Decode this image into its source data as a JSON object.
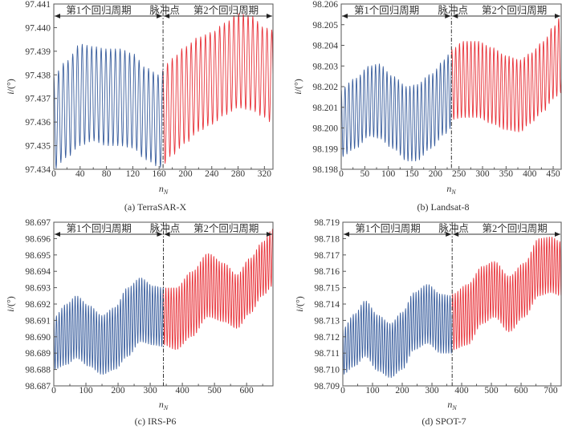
{
  "figure": {
    "ylabel_main": "i",
    "ylabel_unit": "/(°)",
    "xlabel_main": "n",
    "xlabel_sub": "N",
    "annotation_period1": "第1个回归周期",
    "annotation_pulse": "脉冲点",
    "annotation_period2": "第2个回归周期",
    "color_before_pulse": "#3b5f9e",
    "color_after_pulse": "#e8333a"
  },
  "chart_data": [
    {
      "type": "line",
      "id": "a",
      "caption": "(a) TerraSAR-X",
      "xlabel": "n_N",
      "ylabel": "i/(°)",
      "xlim": [
        0,
        333
      ],
      "ylim": [
        97.434,
        97.441
      ],
      "xticks": [
        0,
        40,
        80,
        120,
        160,
        200,
        240,
        280,
        320
      ],
      "xtick_labels": [
        "0",
        "40",
        "80",
        "120",
        "160",
        "200",
        "240",
        "280",
        "320"
      ],
      "yticks": [
        97.434,
        97.435,
        97.436,
        97.437,
        97.438,
        97.439,
        97.44,
        97.441
      ],
      "ytick_labels": [
        "97.434",
        "97.435",
        "97.436",
        "97.437",
        "97.438",
        "97.439",
        "97.440",
        "97.441"
      ],
      "pulse_x": 166,
      "oscillation_period": 7.2,
      "series": [
        {
          "name": "第1个回归周期",
          "color": "#3b5f9e",
          "x": [
            0,
            20,
            40,
            60,
            80,
            100,
            120,
            140,
            160,
            166
          ],
          "upper": [
            97.438,
            97.4386,
            97.4393,
            97.4392,
            97.4391,
            97.4391,
            97.4389,
            97.4383,
            97.438,
            97.4382
          ],
          "lower": [
            97.434,
            97.4345,
            97.435,
            97.4352,
            97.435,
            97.435,
            97.4349,
            97.4344,
            97.4341,
            97.434
          ]
        },
        {
          "name": "第2个回归周期",
          "color": "#e8333a",
          "x": [
            166,
            180,
            200,
            220,
            240,
            260,
            280,
            300,
            320,
            333
          ],
          "upper": [
            97.4383,
            97.4387,
            97.4392,
            97.4396,
            97.4398,
            97.4402,
            97.4406,
            97.4405,
            97.44,
            97.4399
          ],
          "lower": [
            97.4342,
            97.4346,
            97.4351,
            97.4356,
            97.4359,
            97.4363,
            97.4366,
            97.4365,
            97.4362,
            97.4359
          ]
        }
      ]
    },
    {
      "type": "line",
      "id": "b",
      "caption": "(b) Landsat-8",
      "xlabel": "n_N",
      "ylabel": "i/(°)",
      "xlim": [
        0,
        467
      ],
      "ylim": [
        98.198,
        98.206
      ],
      "xticks": [
        0,
        50,
        100,
        150,
        200,
        250,
        300,
        350,
        400,
        450
      ],
      "xtick_labels": [
        "0",
        "50",
        "100",
        "150",
        "200",
        "250",
        "300",
        "350",
        "400",
        "450"
      ],
      "yticks": [
        98.198,
        98.199,
        98.2,
        98.201,
        98.202,
        98.203,
        98.204,
        98.205,
        98.206
      ],
      "ytick_labels": [
        "98.198",
        "98.199",
        "98.200",
        "98.201",
        "98.202",
        "98.203",
        "98.204",
        "98.205",
        "98.206"
      ],
      "pulse_x": 234,
      "oscillation_period": 8.1,
      "series": [
        {
          "name": "第1个回归周期",
          "color": "#3b5f9e",
          "x": [
            0,
            30,
            60,
            80,
            110,
            140,
            160,
            190,
            220,
            234
          ],
          "upper": [
            98.2019,
            98.2024,
            98.203,
            98.2031,
            98.2025,
            98.202,
            98.2021,
            98.2026,
            98.2033,
            98.2038
          ],
          "lower": [
            98.1986,
            98.199,
            98.1996,
            98.1995,
            98.199,
            98.1984,
            98.1984,
            98.199,
            98.1997,
            98.2
          ]
        },
        {
          "name": "第2个回归周期",
          "color": "#e8333a",
          "x": [
            234,
            260,
            290,
            320,
            350,
            380,
            400,
            430,
            450,
            467
          ],
          "upper": [
            98.2038,
            98.2042,
            98.2042,
            98.2039,
            98.2035,
            98.2033,
            98.2036,
            98.2042,
            98.2049,
            98.2054
          ],
          "lower": [
            98.2004,
            98.2005,
            98.2005,
            98.2002,
            98.1999,
            98.1998,
            98.2002,
            98.2008,
            98.2014,
            98.2017
          ]
        }
      ]
    },
    {
      "type": "line",
      "id": "c",
      "caption": "(c) IRS-P6",
      "xlabel": "n_N",
      "ylabel": "i/(°)",
      "xlim": [
        0,
        682
      ],
      "ylim": [
        98.687,
        98.697
      ],
      "xticks": [
        0,
        100,
        200,
        300,
        400,
        500,
        600
      ],
      "xtick_labels": [
        "0",
        "100",
        "200",
        "300",
        "400",
        "500",
        "600"
      ],
      "yticks": [
        98.687,
        98.688,
        98.689,
        98.69,
        98.691,
        98.692,
        98.693,
        98.694,
        98.695,
        98.696,
        98.697
      ],
      "ytick_labels": [
        "98.687",
        "98.688",
        "98.689",
        "98.690",
        "98.691",
        "98.692",
        "98.693",
        "98.694",
        "98.695",
        "98.696",
        "98.697"
      ],
      "pulse_x": 341,
      "oscillation_period": 8.3,
      "series": [
        {
          "name": "第1个回归周期",
          "color": "#3b5f9e",
          "x": [
            0,
            40,
            70,
            110,
            150,
            190,
            230,
            270,
            310,
            341
          ],
          "upper": [
            98.6912,
            98.692,
            98.6925,
            98.6919,
            98.6913,
            98.6918,
            98.693,
            98.6936,
            98.6931,
            98.693
          ],
          "lower": [
            98.688,
            98.6883,
            98.6887,
            98.6882,
            98.6877,
            98.688,
            98.6888,
            98.6897,
            98.6895,
            98.6894
          ]
        },
        {
          "name": "第2个回归周期",
          "color": "#e8333a",
          "x": [
            341,
            380,
            430,
            480,
            530,
            570,
            610,
            650,
            682
          ],
          "upper": [
            98.693,
            98.693,
            98.694,
            98.6951,
            98.6945,
            98.6938,
            98.6948,
            98.6958,
            98.6966
          ],
          "lower": [
            98.6895,
            98.6892,
            98.69,
            98.6912,
            98.6909,
            98.6905,
            98.6914,
            98.6925,
            98.6931
          ]
        }
      ]
    },
    {
      "type": "line",
      "id": "d",
      "caption": "(d) SPOT-7",
      "xlabel": "n_N",
      "ylabel": "i/(°)",
      "xlim": [
        0,
        735
      ],
      "ylim": [
        98.709,
        98.719
      ],
      "xticks": [
        0,
        100,
        200,
        300,
        400,
        500,
        600,
        700
      ],
      "xtick_labels": [
        "0",
        "100",
        "200",
        "300",
        "400",
        "500",
        "600",
        "700"
      ],
      "yticks": [
        98.709,
        98.71,
        98.711,
        98.712,
        98.713,
        98.714,
        98.715,
        98.716,
        98.717,
        98.718,
        98.719
      ],
      "ytick_labels": [
        "98.709",
        "98.710",
        "98.711",
        "98.712",
        "98.713",
        "98.714",
        "98.715",
        "98.716",
        "98.717",
        "98.718",
        "98.719"
      ],
      "pulse_x": 368,
      "oscillation_period": 8.8,
      "series": [
        {
          "name": "第1个回归周期",
          "color": "#3b5f9e",
          "x": [
            0,
            40,
            75,
            120,
            160,
            200,
            240,
            285,
            330,
            368
          ],
          "upper": [
            98.7125,
            98.7134,
            98.7142,
            98.7133,
            98.7128,
            98.7135,
            98.7147,
            98.7152,
            98.7146,
            98.7145
          ],
          "lower": [
            98.7097,
            98.7102,
            98.7108,
            98.7099,
            98.7095,
            98.71,
            98.7112,
            98.7116,
            98.711,
            98.711
          ]
        },
        {
          "name": "第2个回归周期",
          "color": "#e8333a",
          "x": [
            368,
            420,
            470,
            510,
            560,
            610,
            660,
            700,
            735
          ],
          "upper": [
            98.7146,
            98.7152,
            98.7163,
            98.7166,
            98.7157,
            98.7165,
            98.718,
            98.7181,
            98.7178
          ],
          "lower": [
            98.7112,
            98.7115,
            98.7128,
            98.7132,
            98.7123,
            98.7132,
            98.7145,
            98.7147,
            98.7145
          ]
        }
      ]
    }
  ]
}
